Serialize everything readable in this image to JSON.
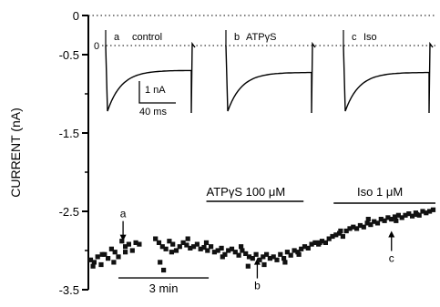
{
  "chart_data": {
    "type": "scatter",
    "ylabel": "CURRENT (nA)",
    "ylim": [
      -3.5,
      0
    ],
    "yticks": [
      {
        "value": 0,
        "label": "0"
      },
      {
        "value": -0.5,
        "label": "-0.5"
      },
      {
        "value": -1.5,
        "label": "-1.5"
      },
      {
        "value": -2.5,
        "label": "-2.5"
      },
      {
        "value": -3.5,
        "label": "-3.5"
      }
    ],
    "xlim": [
      0,
      15
    ],
    "grid": false,
    "reference_line": {
      "y": 0,
      "style": "dotted"
    },
    "inset_traces": {
      "zero_label": "0",
      "scale_bar": {
        "current_label": "1 nA",
        "time_label": "40 ms",
        "current_nA": 1
      },
      "traces": [
        {
          "letter": "a",
          "name": "control",
          "peak_nA": -1.6,
          "steady_nA": -0.45
        },
        {
          "letter": "b",
          "name": "ATPγS",
          "peak_nA": -1.6,
          "steady_nA": -0.5
        },
        {
          "letter": "c",
          "name": "Iso",
          "peak_nA": -1.6,
          "steady_nA": -0.5
        }
      ]
    },
    "annotations": {
      "atp": {
        "label": "ATPγS 100 μM",
        "x_start": 5.1,
        "x_end": 9.3
      },
      "iso": {
        "label": "Iso 1 μM",
        "x_start": 10.6,
        "x_end": 15.0
      },
      "time_scale": {
        "label": "3 min",
        "x_start": 1.3,
        "x_end": 5.2,
        "y": -3.35
      },
      "arrows": [
        {
          "letter": "a",
          "x": 1.5,
          "y_tip": -2.88,
          "direction": "down"
        },
        {
          "letter": "b",
          "x": 7.3,
          "y_tip": -3.1,
          "direction": "up"
        },
        {
          "letter": "c",
          "x": 13.1,
          "y_tip": -2.75,
          "direction": "up"
        }
      ]
    },
    "series": [
      {
        "x": [
          0.1,
          0.25,
          0.4,
          0.55,
          0.7,
          0.85,
          1.0,
          1.15,
          1.3,
          1.45,
          1.6,
          1.75,
          1.9,
          2.05,
          2.2,
          2.9,
          3.05,
          3.2,
          3.35,
          3.5,
          3.65,
          3.8,
          3.95,
          4.1,
          4.25,
          4.4,
          4.55,
          4.7,
          4.85,
          5.0,
          5.15,
          5.3,
          5.45,
          5.6,
          5.75,
          5.9,
          6.05,
          6.2,
          6.35,
          6.5,
          6.65,
          6.8,
          6.95,
          7.1,
          7.25,
          7.4,
          7.55,
          7.7,
          7.85,
          8.0,
          8.15,
          8.3,
          8.45,
          8.6,
          8.75,
          8.9,
          9.05,
          9.2,
          9.35,
          9.5,
          9.65,
          9.8,
          9.95,
          10.1,
          10.25,
          10.4,
          10.55,
          10.7,
          10.85,
          11.0,
          11.15,
          11.3,
          11.45,
          11.6,
          11.75,
          11.9,
          12.05,
          12.2,
          12.35,
          12.5,
          12.65,
          12.8,
          12.95,
          13.1,
          13.25,
          13.4,
          13.55,
          13.7,
          13.85,
          14.0,
          14.15,
          14.3,
          14.45,
          14.6,
          14.75,
          14.9,
          0.2,
          0.6,
          1.1,
          1.6,
          3.1,
          3.6,
          4.3,
          5.1,
          5.8,
          6.6,
          7.6,
          8.5,
          9.1,
          10.0,
          10.9,
          12.1,
          13.3,
          14.2,
          3.25,
          6.9
        ],
        "y": [
          -3.12,
          -3.15,
          -3.08,
          -3.18,
          -3.05,
          -3.1,
          -2.98,
          -3.02,
          -3.08,
          -2.88,
          -2.95,
          -2.92,
          -3.0,
          -2.9,
          -2.92,
          -2.85,
          -2.9,
          -2.95,
          -2.98,
          -2.88,
          -2.92,
          -3.0,
          -2.95,
          -2.9,
          -2.93,
          -2.97,
          -2.95,
          -2.92,
          -2.98,
          -2.96,
          -3.0,
          -2.95,
          -3.02,
          -3.0,
          -2.97,
          -3.05,
          -3.0,
          -2.98,
          -3.02,
          -3.06,
          -3.0,
          -3.04,
          -3.08,
          -3.1,
          -3.05,
          -3.12,
          -3.08,
          -3.05,
          -3.1,
          -3.08,
          -3.12,
          -3.05,
          -3.1,
          -3.02,
          -3.06,
          -3.0,
          -3.02,
          -2.98,
          -2.95,
          -2.97,
          -2.92,
          -2.9,
          -2.92,
          -2.88,
          -2.9,
          -2.85,
          -2.82,
          -2.8,
          -2.78,
          -2.82,
          -2.75,
          -2.72,
          -2.7,
          -2.72,
          -2.68,
          -2.7,
          -2.65,
          -2.67,
          -2.63,
          -2.65,
          -2.6,
          -2.62,
          -2.58,
          -2.6,
          -2.57,
          -2.55,
          -2.58,
          -2.55,
          -2.53,
          -2.56,
          -2.52,
          -2.55,
          -2.5,
          -2.52,
          -2.5,
          -2.48,
          -3.2,
          -3.05,
          -3.15,
          -3.02,
          -3.15,
          -3.02,
          -2.85,
          -2.9,
          -3.08,
          -2.95,
          -3.18,
          -3.15,
          -3.05,
          -2.9,
          -2.75,
          -2.6,
          -2.62,
          -2.54,
          -3.25,
          -3.2
        ]
      }
    ]
  }
}
